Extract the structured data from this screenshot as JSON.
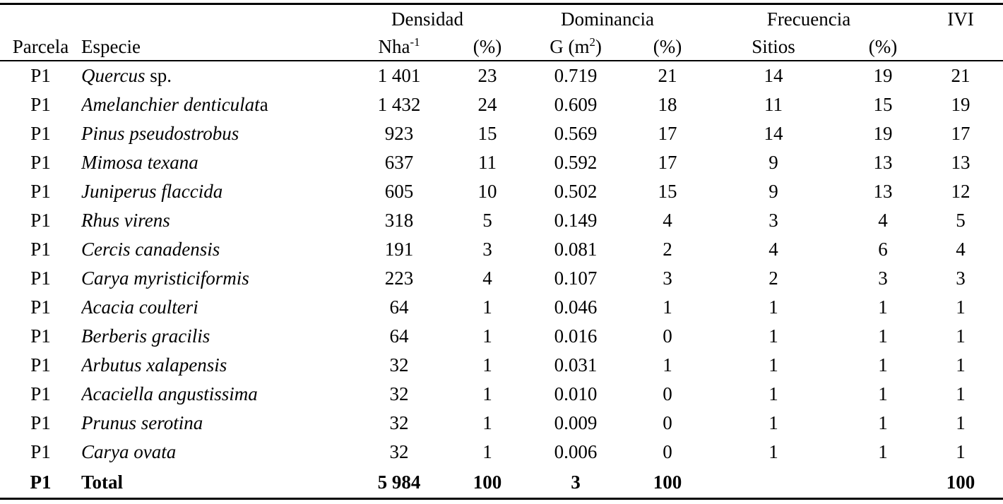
{
  "table": {
    "group_headers": {
      "densidad": "Densidad",
      "dominancia": "Dominancia",
      "frecuencia": "Frecuencia",
      "ivi": "IVI"
    },
    "col_headers": {
      "parcela": "Parcela",
      "especie": "Especie",
      "nha_base": "Nha",
      "nha_sup": "-1",
      "densidad_pct": "(%)",
      "g_base": "G (m",
      "g_sup": "2",
      "g_close": ")",
      "dominancia_pct": "(%)",
      "sitios": "Sitios",
      "frecuencia_pct": "(%)"
    },
    "rows": [
      {
        "parcela": "P1",
        "especie_italic": "Quercus",
        "especie_regular": " sp.",
        "nha": "1 401",
        "den_pct": "23",
        "g": "0.719",
        "dom_pct": "21",
        "sitios": "14",
        "fre_pct": "19",
        "ivi": "21"
      },
      {
        "parcela": "P1",
        "especie_italic": "Amelanchier denticulat",
        "especie_regular": "a",
        "nha": "1 432",
        "den_pct": "24",
        "g": "0.609",
        "dom_pct": "18",
        "sitios": "11",
        "fre_pct": "15",
        "ivi": "19"
      },
      {
        "parcela": "P1",
        "especie_italic": "Pinus pseudostrobus",
        "especie_regular": "",
        "nha": "923",
        "den_pct": "15",
        "g": "0.569",
        "dom_pct": "17",
        "sitios": "14",
        "fre_pct": "19",
        "ivi": "17"
      },
      {
        "parcela": "P1",
        "especie_italic": "Mimosa texana",
        "especie_regular": "",
        "nha": "637",
        "den_pct": "11",
        "g": "0.592",
        "dom_pct": "17",
        "sitios": "9",
        "fre_pct": "13",
        "ivi": "13"
      },
      {
        "parcela": "P1",
        "especie_italic": "Juniperus flaccida",
        "especie_regular": "",
        "nha": "605",
        "den_pct": "10",
        "g": "0.502",
        "dom_pct": "15",
        "sitios": "9",
        "fre_pct": "13",
        "ivi": "12"
      },
      {
        "parcela": "P1",
        "especie_italic": "Rhus virens",
        "especie_regular": "",
        "nha": "318",
        "den_pct": "5",
        "g": "0.149",
        "dom_pct": "4",
        "sitios": "3",
        "fre_pct": "4",
        "ivi": "5"
      },
      {
        "parcela": "P1",
        "especie_italic": "Cercis canadensis",
        "especie_regular": "",
        "nha": "191",
        "den_pct": "3",
        "g": "0.081",
        "dom_pct": "2",
        "sitios": "4",
        "fre_pct": "6",
        "ivi": "4"
      },
      {
        "parcela": "P1",
        "especie_italic": "Carya myristiciformis",
        "especie_regular": "",
        "nha": "223",
        "den_pct": "4",
        "g": "0.107",
        "dom_pct": "3",
        "sitios": "2",
        "fre_pct": "3",
        "ivi": "3"
      },
      {
        "parcela": "P1",
        "especie_italic": "Acacia coulteri",
        "especie_regular": "",
        "nha": "64",
        "den_pct": "1",
        "g": "0.046",
        "dom_pct": "1",
        "sitios": "1",
        "fre_pct": "1",
        "ivi": "1"
      },
      {
        "parcela": "P1",
        "especie_italic": "Berberis gracilis",
        "especie_regular": "",
        "nha": "64",
        "den_pct": "1",
        "g": "0.016",
        "dom_pct": "0",
        "sitios": "1",
        "fre_pct": "1",
        "ivi": "1"
      },
      {
        "parcela": "P1",
        "especie_italic": "Arbutus xalapensis",
        "especie_regular": "",
        "nha": "32",
        "den_pct": "1",
        "g": "0.031",
        "dom_pct": "1",
        "sitios": "1",
        "fre_pct": "1",
        "ivi": "1"
      },
      {
        "parcela": "P1",
        "especie_italic": "Acaciella angustissima",
        "especie_regular": "",
        "nha": "32",
        "den_pct": "1",
        "g": "0.010",
        "dom_pct": "0",
        "sitios": "1",
        "fre_pct": "1",
        "ivi": "1"
      },
      {
        "parcela": "P1",
        "especie_italic": "Prunus serotina",
        "especie_regular": "",
        "nha": "32",
        "den_pct": "1",
        "g": "0.009",
        "dom_pct": "0",
        "sitios": "1",
        "fre_pct": "1",
        "ivi": "1"
      },
      {
        "parcela": "P1",
        "especie_italic": "Carya ovata",
        "especie_regular": "",
        "nha": "32",
        "den_pct": "1",
        "g": "0.006",
        "dom_pct": "0",
        "sitios": "1",
        "fre_pct": "1",
        "ivi": "1"
      }
    ],
    "total_row": {
      "parcela": "P1",
      "label": "Total",
      "nha": "5 984",
      "den_pct": "100",
      "g": "3",
      "dom_pct": "100",
      "sitios": "",
      "fre_pct": "",
      "ivi": "100"
    },
    "colors": {
      "text": "#000000",
      "background": "#ffffff",
      "rule": "#000000"
    }
  }
}
